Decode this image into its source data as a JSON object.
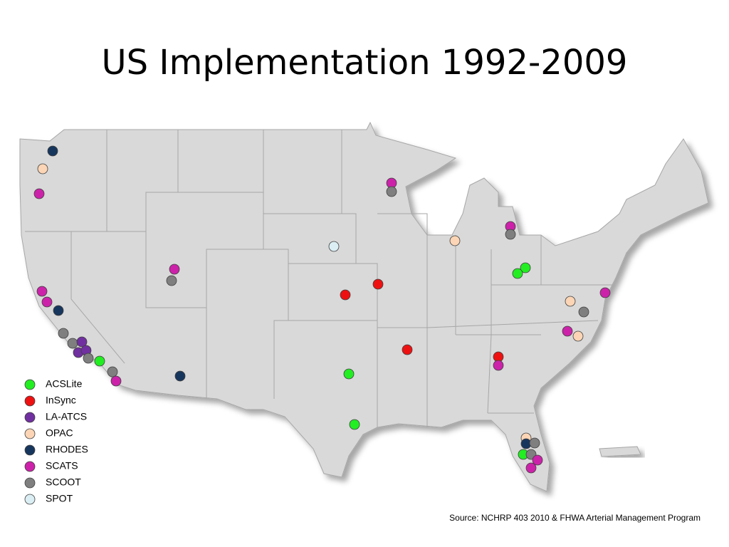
{
  "title": "US Implementation 1992-2009",
  "legend": [
    {
      "name": "ACSLite",
      "color": "#22ee22"
    },
    {
      "name": "InSync",
      "color": "#ee1111"
    },
    {
      "name": "LA-ATCS",
      "color": "#7030a0"
    },
    {
      "name": "OPAC",
      "color": "#fbd5b5"
    },
    {
      "name": "RHODES",
      "color": "#17365d"
    },
    {
      "name": "SCATS",
      "color": "#cc22aa"
    },
    {
      "name": "SCOOT",
      "color": "#7f7f7f"
    },
    {
      "name": "SPOT",
      "color": "#daeef3"
    }
  ],
  "source": "Source: NCHRP 403 2010 & FHWA Arterial Management Program"
}
